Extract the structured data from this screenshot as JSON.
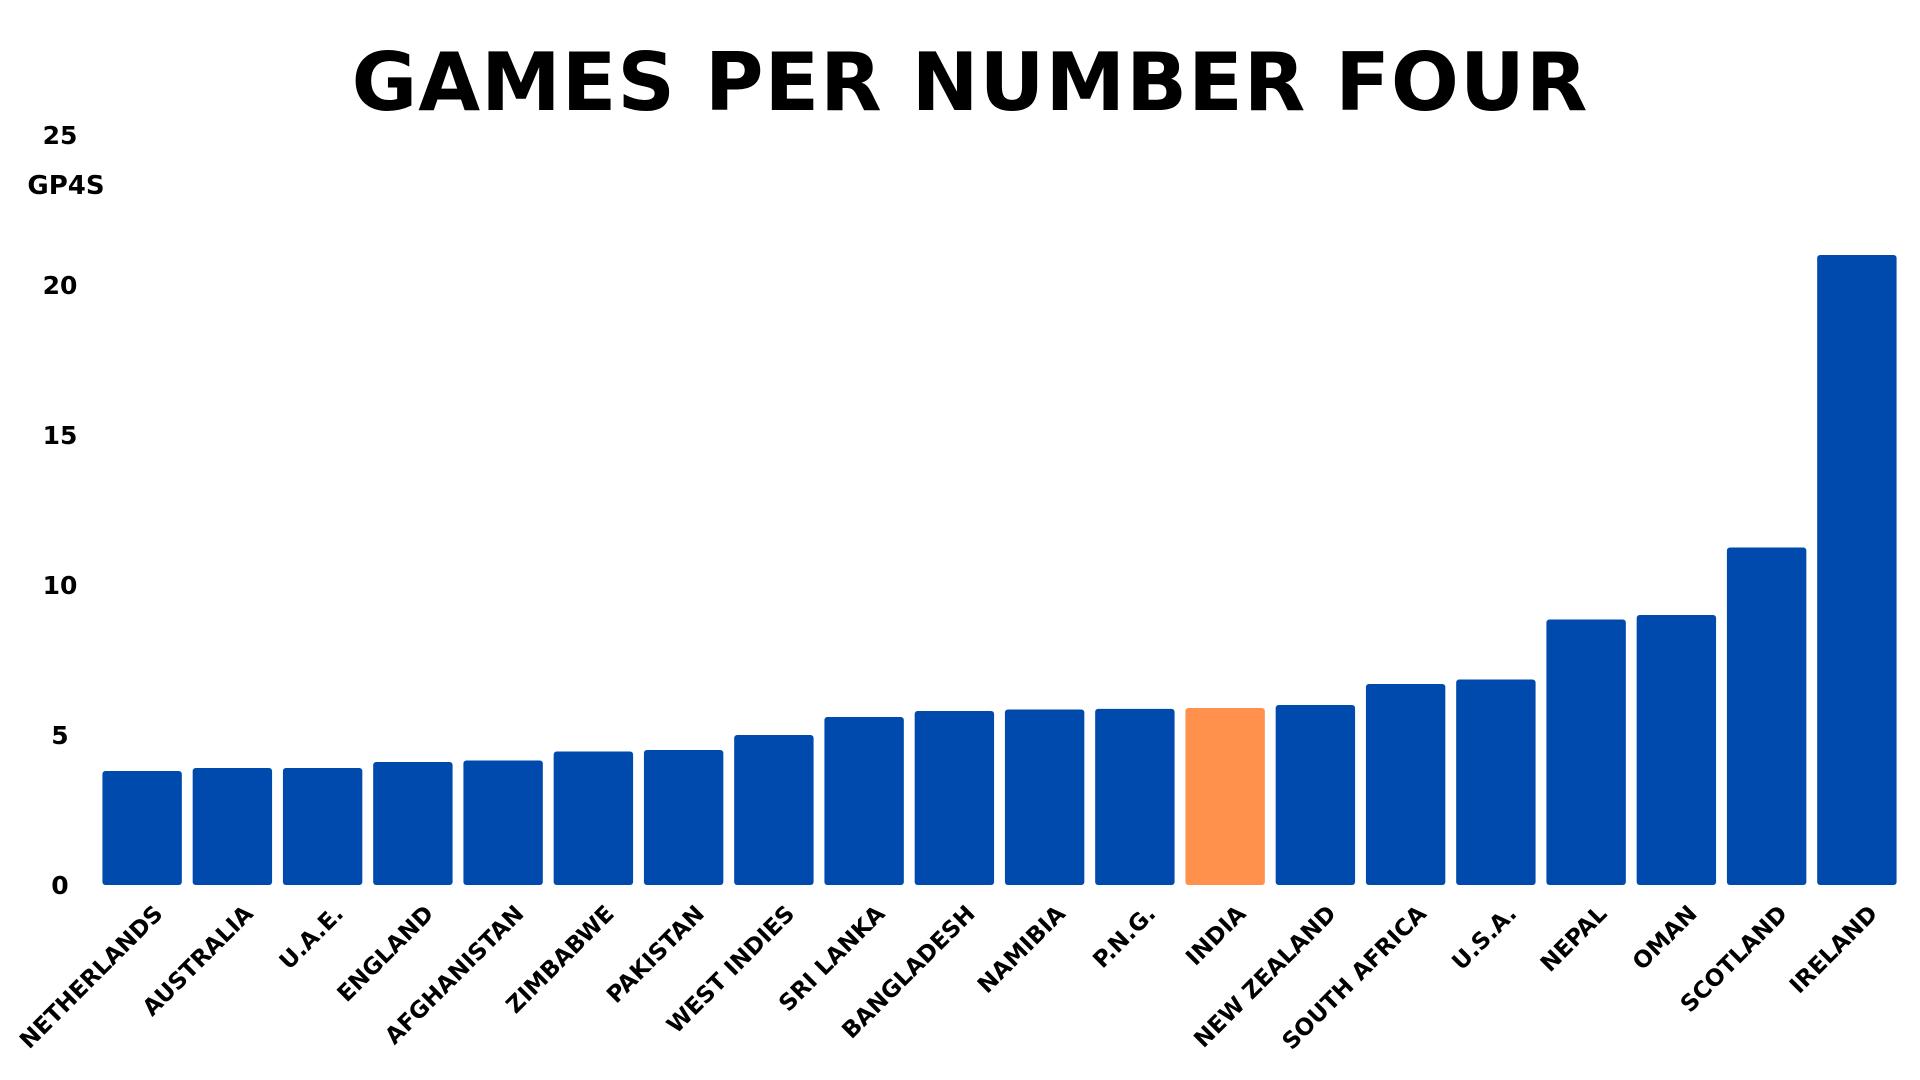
{
  "chart_data": {
    "type": "bar",
    "title": "GAMES PER NUMBER FOUR",
    "ylabel": "GP4S",
    "xlabel": "",
    "ylim": [
      0,
      25
    ],
    "yticks": [
      "0",
      "5",
      "10",
      "15",
      "20",
      "25"
    ],
    "grid": false,
    "legend": "none",
    "categories": [
      "NETHERLANDS",
      "AUSTRALIA",
      "U.A.E.",
      "ENGLAND",
      "AFGHANISTAN",
      "ZIMBABWE",
      "PAKISTAN",
      "WEST INDIES",
      "SRI LANKA",
      "BANGLADESH",
      "NAMIBIA",
      "P.N.G.",
      "INDIA",
      "NEW ZEALAND",
      "SOUTH AFRICA",
      "U.S.A.",
      "NEPAL",
      "OMAN",
      "SCOTLAND",
      "IRELAND"
    ],
    "values": [
      3.8,
      3.9,
      3.9,
      4.1,
      4.15,
      4.45,
      4.5,
      5.0,
      5.6,
      5.8,
      5.85,
      5.87,
      5.9,
      6.0,
      6.7,
      6.85,
      8.85,
      9.0,
      11.25,
      21.0
    ],
    "bar_color": "#004AAD",
    "highlight_color": "#FF914D",
    "highlight_category": "INDIA"
  }
}
